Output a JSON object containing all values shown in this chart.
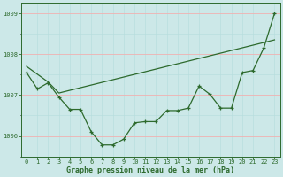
{
  "line1_x": [
    0,
    1,
    2,
    3,
    4,
    5,
    6,
    7,
    8,
    9,
    10,
    11,
    12,
    13,
    14,
    15,
    16,
    17,
    18,
    19,
    20,
    21,
    22,
    23
  ],
  "line1_y": [
    1007.55,
    1007.15,
    1007.3,
    1006.95,
    1006.65,
    1006.65,
    1006.1,
    1005.78,
    1005.78,
    1005.92,
    1006.32,
    1006.35,
    1006.35,
    1006.62,
    1006.62,
    1006.68,
    1007.22,
    1007.02,
    1006.68,
    1006.68,
    1007.55,
    1007.6,
    1008.15,
    1009.0
  ],
  "line2_x": [
    0,
    2,
    3,
    23
  ],
  "line2_y": [
    1007.7,
    1007.32,
    1007.05,
    1008.35
  ],
  "line_color": "#2d6a2d",
  "bg_color": "#cce8e8",
  "grid_major_color": "#f0b0b0",
  "grid_minor_color": "#b8dede",
  "xlabel": "Graphe pression niveau de la mer (hPa)",
  "ylim": [
    1005.5,
    1009.25
  ],
  "xlim": [
    -0.5,
    23.5
  ],
  "yticks": [
    1006,
    1007,
    1008,
    1009
  ],
  "xticks": [
    0,
    1,
    2,
    3,
    4,
    5,
    6,
    7,
    8,
    9,
    10,
    11,
    12,
    13,
    14,
    15,
    16,
    17,
    18,
    19,
    20,
    21,
    22,
    23
  ]
}
